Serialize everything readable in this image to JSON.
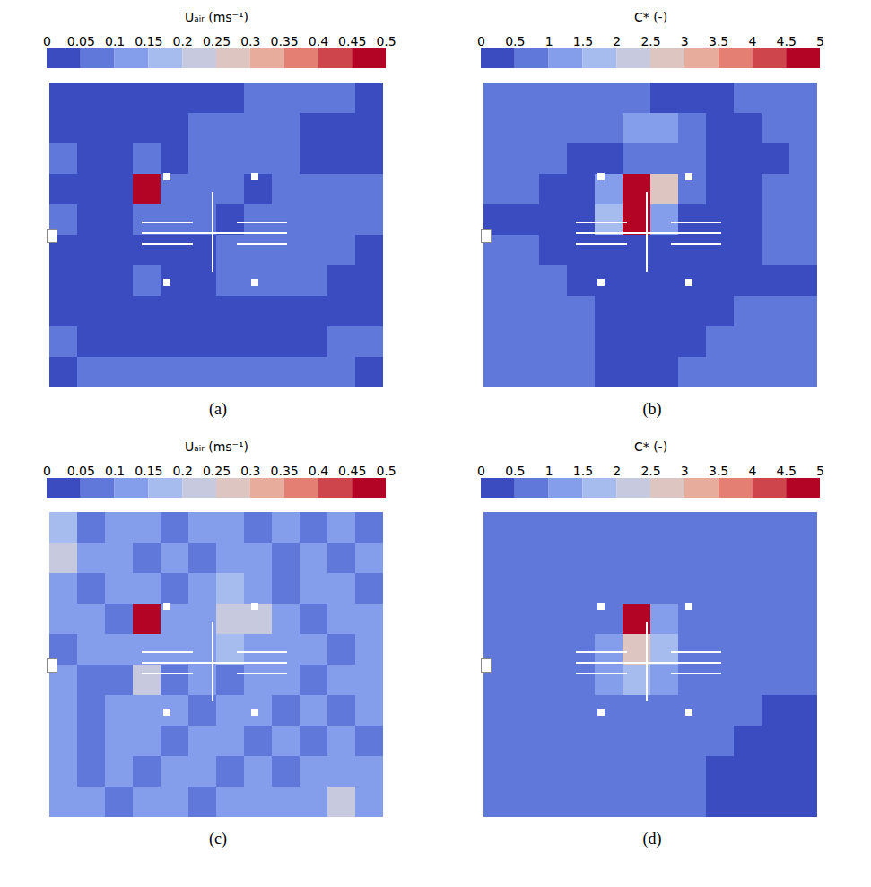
{
  "chart_data": [
    {
      "type": "heatmap",
      "label": "(a)",
      "colorbar": {
        "title": "Uₐᵢᵣ (ms⁻¹)",
        "range": [
          0,
          0.5
        ],
        "ticks": [
          0,
          0.05,
          0.1,
          0.15,
          0.2,
          0.25,
          0.3,
          0.35,
          0.4,
          0.45,
          0.5
        ]
      },
      "cells": [
        [
          0.03,
          0.04,
          0.03,
          0.03,
          0.03,
          0.03,
          0.04,
          0.06,
          0.07,
          0.07,
          0.05,
          0.04
        ],
        [
          0.04,
          0.03,
          0.03,
          0.03,
          0.04,
          0.05,
          0.06,
          0.07,
          0.06,
          0.04,
          0.03,
          0.03
        ],
        [
          0.05,
          0.03,
          0.03,
          0.06,
          0.04,
          0.05,
          0.07,
          0.06,
          0.05,
          0.04,
          0.04,
          0.03
        ],
        [
          0.04,
          0.03,
          0.04,
          0.45,
          0.05,
          0.06,
          0.05,
          0.04,
          0.06,
          0.07,
          0.06,
          0.05
        ],
        [
          0.05,
          0.04,
          0.04,
          0.06,
          0.05,
          0.05,
          0.04,
          0.06,
          0.07,
          0.07,
          0.06,
          0.05
        ],
        [
          0.03,
          0.03,
          0.04,
          0.04,
          0.04,
          0.04,
          0.05,
          0.07,
          0.07,
          0.06,
          0.05,
          0.04
        ],
        [
          0.03,
          0.03,
          0.04,
          0.05,
          0.04,
          0.04,
          0.05,
          0.06,
          0.06,
          0.05,
          0.04,
          0.03
        ],
        [
          0.04,
          0.04,
          0.03,
          0.03,
          0.03,
          0.03,
          0.04,
          0.04,
          0.04,
          0.04,
          0.04,
          0.04
        ],
        [
          0.05,
          0.04,
          0.03,
          0.03,
          0.03,
          0.03,
          0.03,
          0.03,
          0.04,
          0.04,
          0.05,
          0.05
        ],
        [
          0.04,
          0.05,
          0.05,
          0.05,
          0.05,
          0.05,
          0.05,
          0.05,
          0.05,
          0.05,
          0.05,
          0.04
        ]
      ]
    },
    {
      "type": "heatmap",
      "label": "(b)",
      "colorbar": {
        "title": "C* (-)",
        "range": [
          0,
          5
        ],
        "ticks": [
          0,
          0.5,
          1,
          1.5,
          2,
          2.5,
          3,
          3.5,
          4,
          4.5,
          5
        ]
      },
      "cells": [
        [
          0.7,
          0.8,
          0.8,
          0.7,
          0.6,
          0.5,
          0.4,
          0.4,
          0.4,
          0.5,
          0.6,
          0.6
        ],
        [
          0.8,
          0.7,
          0.7,
          0.6,
          0.9,
          1.2,
          1.1,
          0.6,
          0.4,
          0.4,
          0.5,
          0.6
        ],
        [
          0.8,
          0.6,
          0.5,
          0.4,
          0.4,
          0.6,
          0.8,
          0.5,
          0.3,
          0.3,
          0.4,
          0.5
        ],
        [
          0.6,
          0.5,
          0.4,
          0.4,
          1.0,
          4.9,
          2.5,
          0.5,
          0.3,
          0.3,
          0.5,
          0.6
        ],
        [
          0.3,
          0.3,
          0.4,
          0.4,
          1.5,
          4.9,
          1.2,
          0.4,
          0.3,
          0.4,
          0.6,
          0.6
        ],
        [
          0.6,
          0.6,
          0.4,
          0.3,
          0.3,
          0.4,
          0.3,
          0.3,
          0.3,
          0.3,
          0.6,
          0.6
        ],
        [
          0.7,
          0.7,
          0.6,
          0.4,
          0.3,
          0.3,
          0.3,
          0.3,
          0.3,
          0.3,
          0.4,
          0.4
        ],
        [
          0.7,
          0.8,
          0.7,
          0.5,
          0.3,
          0.3,
          0.3,
          0.3,
          0.4,
          0.6,
          0.6,
          0.7
        ],
        [
          0.7,
          0.7,
          0.6,
          0.5,
          0.3,
          0.3,
          0.3,
          0.4,
          0.6,
          0.7,
          0.7,
          0.7
        ],
        [
          0.6,
          0.6,
          0.6,
          0.5,
          0.4,
          0.3,
          0.3,
          0.5,
          0.7,
          0.7,
          0.7,
          0.7
        ]
      ]
    },
    {
      "type": "heatmap",
      "label": "(c)",
      "colorbar": {
        "title": "Uₐᵢᵣ (ms⁻¹)",
        "range": [
          0,
          0.5
        ],
        "ticks": [
          0,
          0.05,
          0.1,
          0.15,
          0.2,
          0.25,
          0.3,
          0.35,
          0.4,
          0.45,
          0.5
        ]
      },
      "cells": [
        [
          0.15,
          0.08,
          0.12,
          0.1,
          0.07,
          0.1,
          0.12,
          0.08,
          0.1,
          0.07,
          0.12,
          0.08
        ],
        [
          0.2,
          0.1,
          0.13,
          0.08,
          0.12,
          0.06,
          0.1,
          0.13,
          0.09,
          0.12,
          0.06,
          0.12
        ],
        [
          0.12,
          0.06,
          0.14,
          0.1,
          0.08,
          0.12,
          0.15,
          0.12,
          0.08,
          0.14,
          0.1,
          0.08
        ],
        [
          0.1,
          0.12,
          0.08,
          0.45,
          0.12,
          0.1,
          0.22,
          0.2,
          0.12,
          0.09,
          0.12,
          0.1
        ],
        [
          0.08,
          0.1,
          0.13,
          0.1,
          0.1,
          0.12,
          0.15,
          0.14,
          0.1,
          0.12,
          0.08,
          0.12
        ],
        [
          0.12,
          0.06,
          0.08,
          0.22,
          0.09,
          0.1,
          0.08,
          0.12,
          0.13,
          0.08,
          0.12,
          0.1
        ],
        [
          0.1,
          0.07,
          0.13,
          0.12,
          0.1,
          0.06,
          0.12,
          0.1,
          0.08,
          0.12,
          0.06,
          0.12
        ],
        [
          0.12,
          0.05,
          0.14,
          0.1,
          0.06,
          0.12,
          0.1,
          0.06,
          0.12,
          0.09,
          0.1,
          0.08
        ],
        [
          0.1,
          0.08,
          0.12,
          0.08,
          0.1,
          0.14,
          0.06,
          0.1,
          0.08,
          0.12,
          0.12,
          0.1
        ],
        [
          0.14,
          0.1,
          0.08,
          0.12,
          0.1,
          0.08,
          0.12,
          0.1,
          0.12,
          0.14,
          0.22,
          0.12
        ]
      ]
    },
    {
      "type": "heatmap",
      "label": "(d)",
      "colorbar": {
        "title": "C* (-)",
        "range": [
          0,
          5
        ],
        "ticks": [
          0,
          0.5,
          1,
          1.5,
          2,
          2.5,
          3,
          3.5,
          4,
          4.5,
          5
        ]
      },
      "cells": [
        [
          0.8,
          0.8,
          0.8,
          0.8,
          0.8,
          0.8,
          0.8,
          0.8,
          0.8,
          0.8,
          0.8,
          0.8
        ],
        [
          0.8,
          0.8,
          0.8,
          0.8,
          0.8,
          0.8,
          0.8,
          0.8,
          0.8,
          0.8,
          0.8,
          0.8
        ],
        [
          0.8,
          0.8,
          0.8,
          0.8,
          0.8,
          0.9,
          0.8,
          0.8,
          0.8,
          0.8,
          0.8,
          0.8
        ],
        [
          0.8,
          0.8,
          0.8,
          0.8,
          0.9,
          4.9,
          1.2,
          0.8,
          0.8,
          0.8,
          0.8,
          0.8
        ],
        [
          0.8,
          0.8,
          0.8,
          0.8,
          1.2,
          2.8,
          1.5,
          0.9,
          0.8,
          0.8,
          0.8,
          0.8
        ],
        [
          0.8,
          0.8,
          0.8,
          0.8,
          1.1,
          1.5,
          1.0,
          0.8,
          0.8,
          0.8,
          0.8,
          0.8
        ],
        [
          0.8,
          0.8,
          0.8,
          0.8,
          0.8,
          0.8,
          0.8,
          0.8,
          0.6,
          0.5,
          0.4,
          0.4
        ],
        [
          0.8,
          0.8,
          0.8,
          0.8,
          0.8,
          0.8,
          0.8,
          0.6,
          0.5,
          0.4,
          0.4,
          0.4
        ],
        [
          0.8,
          0.8,
          0.8,
          0.8,
          0.8,
          0.8,
          0.7,
          0.5,
          0.4,
          0.4,
          0.4,
          0.4
        ],
        [
          0.8,
          0.8,
          0.8,
          0.8,
          0.8,
          0.8,
          0.7,
          0.5,
          0.4,
          0.4,
          0.4,
          0.4
        ]
      ]
    }
  ]
}
